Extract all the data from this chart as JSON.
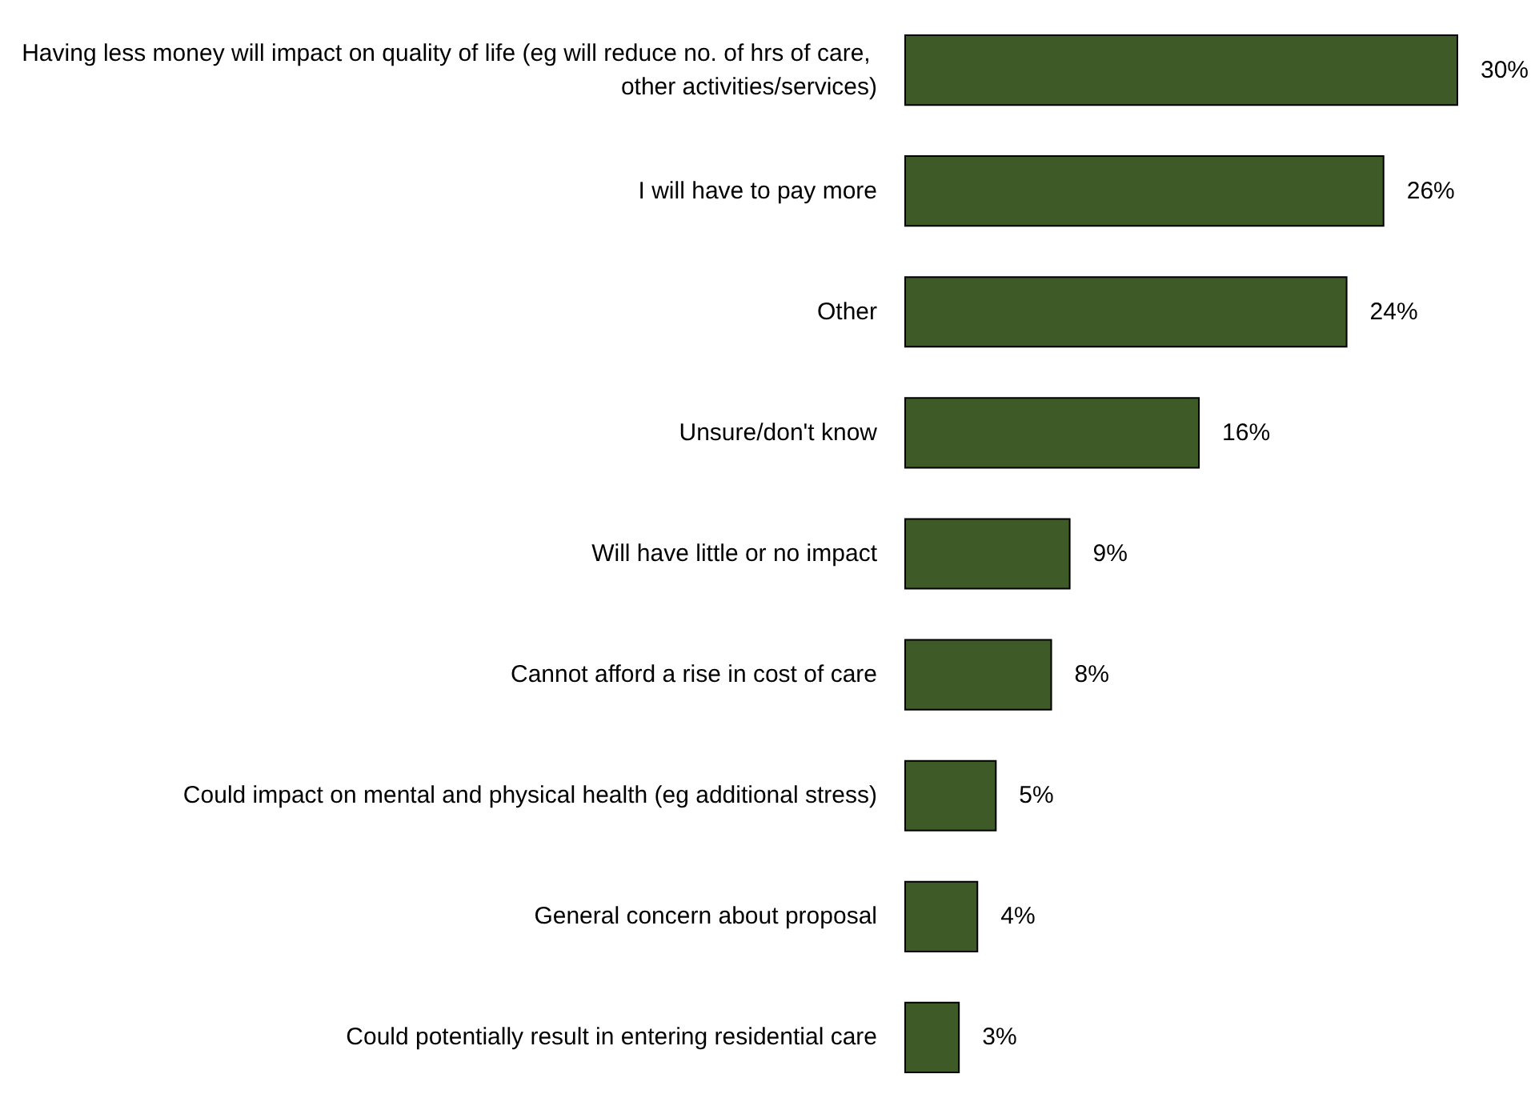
{
  "chart_data": {
    "type": "bar",
    "orientation": "horizontal",
    "categories": [
      "Having less money will impact on quality of life (eg will reduce no. of hrs of care, other activities/services)",
      "I will have to pay more",
      "Other",
      "Unsure/don't know",
      "Will have little or no impact",
      "Cannot afford a rise in cost of care",
      "Could impact on mental and physical health (eg additional stress)",
      "General concern about proposal",
      "Could potentially result in entering residential care"
    ],
    "values": [
      30,
      26,
      24,
      16,
      9,
      8,
      5,
      4,
      3
    ],
    "value_labels": [
      "30%",
      "26%",
      "24%",
      "16%",
      "9%",
      "8%",
      "5%",
      "4%",
      "3%"
    ],
    "color": "#3d5a27"
  }
}
